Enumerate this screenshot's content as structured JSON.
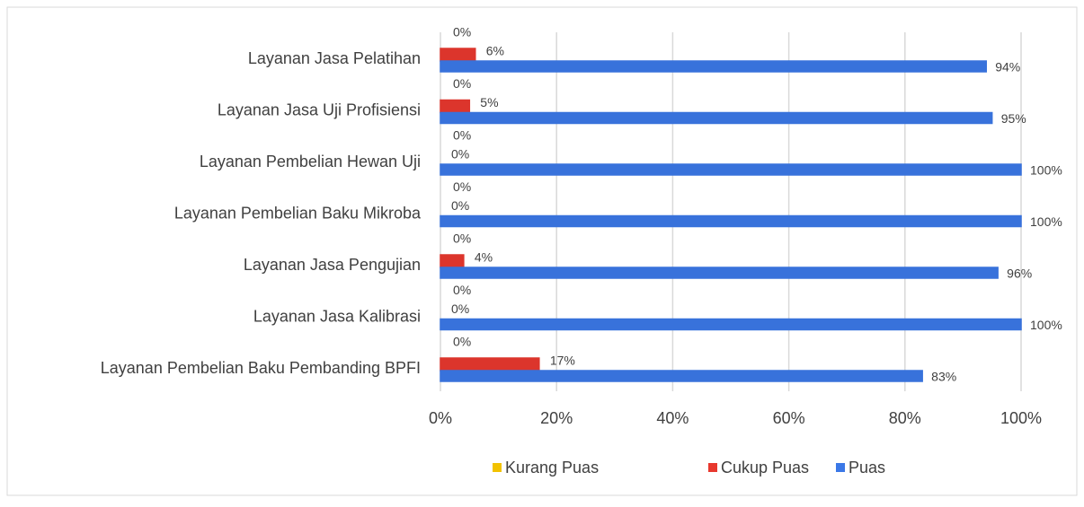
{
  "chart_data": {
    "type": "bar",
    "orientation": "horizontal",
    "categories": [
      "Layanan Jasa Pelatihan",
      "Layanan Jasa Uji Profisiensi",
      "Layanan Pembelian Hewan Uji",
      "Layanan Pembelian Baku Mikroba",
      "Layanan Jasa Pengujian",
      "Layanan Jasa Kalibrasi",
      "Layanan Pembelian Baku Pembanding BPFI"
    ],
    "series": [
      {
        "name": "Kurang Puas",
        "color": "#f2c200",
        "values": [
          0,
          0,
          0,
          0,
          0,
          0,
          0
        ],
        "value_labels": [
          "0%",
          "0%",
          "0%",
          "0%",
          "0%",
          "0%",
          "0%"
        ]
      },
      {
        "name": "Cukup Puas",
        "color": "#e8382e",
        "values": [
          6,
          5,
          0,
          0,
          4,
          0,
          17
        ],
        "value_labels": [
          "6%",
          "5%",
          "0%",
          "0%",
          "4%",
          "0%",
          "17%"
        ]
      },
      {
        "name": "Puas",
        "color": "#3b78e7",
        "values": [
          94,
          95,
          100,
          100,
          96,
          100,
          83
        ],
        "value_labels": [
          "94%",
          "95%",
          "100%",
          "100%",
          "96%",
          "100%",
          "83%"
        ]
      }
    ],
    "xlim": [
      0,
      100
    ],
    "xticks": [
      {
        "value": 0,
        "label": "0%"
      },
      {
        "value": 20,
        "label": "20%"
      },
      {
        "value": 40,
        "label": "40%"
      },
      {
        "value": 60,
        "label": "60%"
      },
      {
        "value": 80,
        "label": "80%"
      },
      {
        "value": 100,
        "label": "100%"
      }
    ],
    "grid": true,
    "legend": "bottom"
  }
}
